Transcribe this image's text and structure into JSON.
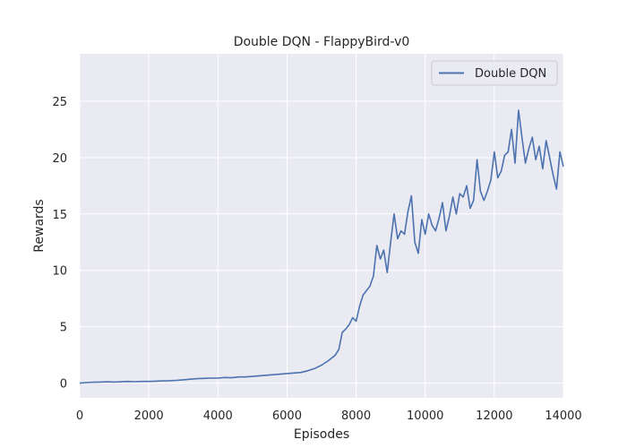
{
  "chart_data": {
    "type": "line",
    "title": "Double DQN - FlappyBird-v0",
    "xlabel": "Episodes",
    "ylabel": "Rewards",
    "xlim": [
      0,
      14000
    ],
    "ylim": [
      -1.3,
      29.2
    ],
    "xticks": [
      0,
      2000,
      4000,
      6000,
      8000,
      10000,
      12000,
      14000
    ],
    "xtick_labels": [
      "0",
      "2000",
      "4000",
      "6000",
      "8000",
      "10000",
      "12000",
      "14000"
    ],
    "yticks": [
      0,
      5,
      10,
      15,
      20,
      25
    ],
    "ytick_labels": [
      "0",
      "5",
      "10",
      "15",
      "20",
      "25"
    ],
    "grid": true,
    "legend": {
      "position": "top-right"
    },
    "series": [
      {
        "name": "Double DQN",
        "color": "#4c72b0",
        "x": [
          0,
          200,
          400,
          600,
          800,
          1000,
          1200,
          1400,
          1600,
          1800,
          2000,
          2200,
          2400,
          2600,
          2800,
          3000,
          3200,
          3400,
          3600,
          3800,
          4000,
          4200,
          4400,
          4600,
          4800,
          5000,
          5200,
          5400,
          5600,
          5800,
          6000,
          6200,
          6400,
          6600,
          6800,
          7000,
          7200,
          7400,
          7500,
          7600,
          7700,
          7800,
          7900,
          8000,
          8100,
          8200,
          8300,
          8400,
          8500,
          8600,
          8700,
          8800,
          8900,
          9000,
          9100,
          9200,
          9300,
          9400,
          9500,
          9600,
          9700,
          9800,
          9900,
          10000,
          10100,
          10200,
          10300,
          10400,
          10500,
          10600,
          10700,
          10800,
          10900,
          11000,
          11100,
          11200,
          11300,
          11400,
          11500,
          11600,
          11700,
          11800,
          11900,
          12000,
          12100,
          12200,
          12300,
          12400,
          12500,
          12600,
          12700,
          12800,
          12900,
          13000,
          13100,
          13200,
          13300,
          13400,
          13500,
          13600,
          13700,
          13800,
          13900,
          14000
        ],
        "y": [
          0.0,
          0.05,
          0.08,
          0.1,
          0.12,
          0.1,
          0.12,
          0.15,
          0.13,
          0.15,
          0.15,
          0.18,
          0.2,
          0.22,
          0.25,
          0.3,
          0.35,
          0.4,
          0.42,
          0.45,
          0.45,
          0.5,
          0.48,
          0.55,
          0.55,
          0.6,
          0.65,
          0.7,
          0.75,
          0.8,
          0.85,
          0.9,
          0.95,
          1.1,
          1.3,
          1.6,
          2.0,
          2.5,
          3.0,
          4.5,
          4.8,
          5.2,
          5.8,
          5.5,
          6.8,
          7.8,
          8.2,
          8.6,
          9.5,
          12.2,
          11.0,
          11.8,
          9.8,
          12.5,
          15.0,
          12.8,
          13.5,
          13.2,
          15.2,
          16.6,
          12.5,
          11.5,
          14.5,
          13.2,
          15.0,
          14.0,
          13.5,
          14.6,
          16.0,
          13.5,
          14.8,
          16.5,
          15.0,
          16.8,
          16.5,
          17.5,
          15.5,
          16.2,
          19.8,
          17.0,
          16.2,
          17.0,
          18.0,
          20.5,
          18.2,
          18.8,
          20.2,
          20.5,
          22.5,
          19.5,
          24.2,
          21.8,
          19.5,
          20.8,
          21.8,
          19.8,
          21.0,
          19.0,
          21.5,
          20.0,
          18.5,
          17.2,
          20.5,
          19.2
        ]
      }
    ]
  }
}
